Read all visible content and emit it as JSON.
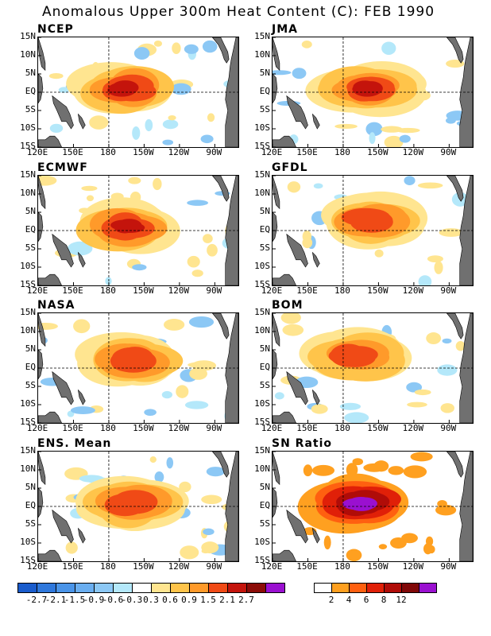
{
  "title": "Anomalous Upper 300m Heat Content (C): FEB 1990",
  "axes": {
    "y_ticks": [
      "15N",
      "10N",
      "5N",
      "EQ",
      "5S",
      "10S",
      "15S"
    ],
    "x_ticks": [
      "120E",
      "150E",
      "180",
      "150W",
      "120W",
      "90W"
    ]
  },
  "chart_data": [
    {
      "type": "heatmap",
      "title": "NCEP",
      "variable": "heat_content_anomaly",
      "units": "C",
      "xlim": [
        120,
        290
      ],
      "ylim": [
        -15,
        15
      ],
      "peak": {
        "lon": 195,
        "lat": 1,
        "value": 2.1
      }
    },
    {
      "type": "heatmap",
      "title": "JMA",
      "variable": "heat_content_anomaly",
      "units": "C",
      "xlim": [
        120,
        290
      ],
      "ylim": [
        -15,
        15
      ],
      "peak": {
        "lon": 200,
        "lat": 1,
        "value": 2.1
      }
    },
    {
      "type": "heatmap",
      "title": "ECMWF",
      "variable": "heat_content_anomaly",
      "units": "C",
      "xlim": [
        120,
        290
      ],
      "ylim": [
        -15,
        15
      ],
      "peak": {
        "lon": 195,
        "lat": 1,
        "value": 2.1
      }
    },
    {
      "type": "heatmap",
      "title": "GFDL",
      "variable": "heat_content_anomaly",
      "units": "C",
      "xlim": [
        120,
        290
      ],
      "ylim": [
        -15,
        15
      ],
      "peak": {
        "lon": 205,
        "lat": 3,
        "value": 1.5
      }
    },
    {
      "type": "heatmap",
      "title": "NASA",
      "variable": "heat_content_anomaly",
      "units": "C",
      "xlim": [
        120,
        290
      ],
      "ylim": [
        -15,
        15
      ],
      "peak": {
        "lon": 200,
        "lat": 2,
        "value": 1.5
      }
    },
    {
      "type": "heatmap",
      "title": "BOM",
      "variable": "heat_content_anomaly",
      "units": "C",
      "xlim": [
        120,
        290
      ],
      "ylim": [
        -15,
        15
      ],
      "peak": {
        "lon": 190,
        "lat": 3,
        "value": 1.5
      }
    },
    {
      "type": "heatmap",
      "title": "ENS. Mean",
      "variable": "heat_content_anomaly",
      "units": "C",
      "xlim": [
        120,
        290
      ],
      "ylim": [
        -15,
        15
      ],
      "peak": {
        "lon": 200,
        "lat": 1,
        "value": 1.5
      }
    },
    {
      "type": "heatmap",
      "title": "SN Ratio",
      "variable": "signal_to_noise",
      "xlim": [
        120,
        290
      ],
      "ylim": [
        -15,
        15
      ],
      "peak": {
        "lon": 195,
        "lat": 1,
        "value": 12
      }
    }
  ],
  "colorbar_anomaly": {
    "labels": [
      "-2.7",
      "-2.1",
      "-1.5",
      "-0.9",
      "-0.6",
      "-0.3",
      "0.3",
      "0.6",
      "0.9",
      "1.5",
      "2.1",
      "2.7"
    ],
    "colors": [
      "#1a5ccc",
      "#2f78dc",
      "#4a94e8",
      "#6aaef0",
      "#8cc8f5",
      "#b4e8fa",
      "#ffffff",
      "#ffe590",
      "#ffc44a",
      "#ff9a2a",
      "#f04a16",
      "#c4140c",
      "#8c0c08",
      "#9a10d0"
    ]
  },
  "colorbar_sn": {
    "labels": [
      "2",
      "4",
      "6",
      "8",
      "12"
    ],
    "colors": [
      "#ffffff",
      "#ffa020",
      "#ff6010",
      "#e02008",
      "#b00c08",
      "#800808",
      "#9a10d0"
    ]
  },
  "colors": {
    "land": "#707070",
    "positive_levels": [
      "#ffe590",
      "#ffc44a",
      "#ff9a2a",
      "#f04a16",
      "#c4140c"
    ],
    "negative_levels": [
      "#b4e8fa",
      "#8cc8f5",
      "#6aaef0"
    ],
    "sn_levels": [
      "#ffa020",
      "#ff6010",
      "#e02008",
      "#b00c08",
      "#9a10d0"
    ]
  }
}
